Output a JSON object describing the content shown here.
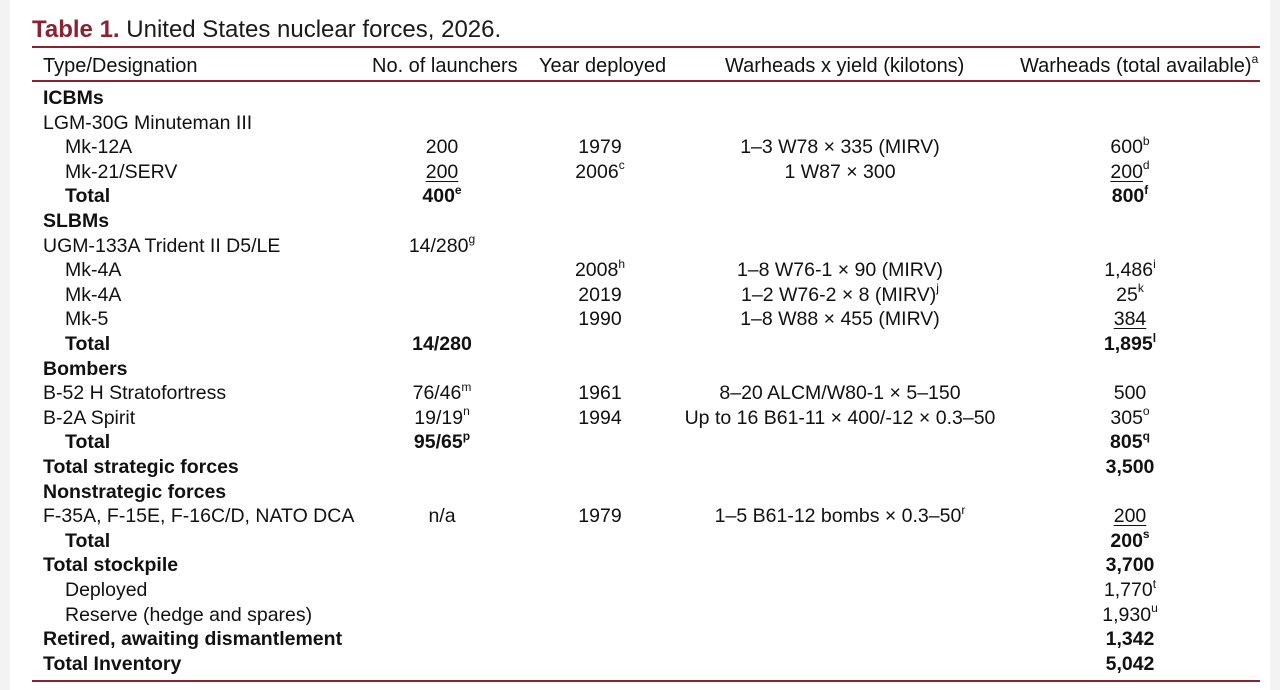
{
  "table": {
    "label": "Table 1.",
    "caption": "United States nuclear forces, 2026.",
    "headers": {
      "type": "Type/Designation",
      "launchers": "No. of launchers",
      "year": "Year deployed",
      "warheads_yield": "Warheads x yield (kilotons)",
      "warheads_total": "Warheads (total available)",
      "warheads_total_note": "a"
    },
    "rows": [
      {
        "type": "ICBMs",
        "bold": true
      },
      {
        "type": "LGM-30G Minuteman III"
      },
      {
        "type": "Mk-12A",
        "indent": true,
        "launchers": "200",
        "year": "1979",
        "warheads_yield": "1–3 W78 × 335 (MIRV)",
        "total": "600",
        "total_note": "b"
      },
      {
        "type": "Mk-21/SERV",
        "indent": true,
        "launchers": "200",
        "launchers_underline": true,
        "year": "2006",
        "year_note": "c",
        "warheads_yield": "1 W87 × 300",
        "total": "200",
        "total_note": "d",
        "total_underline": true
      },
      {
        "type": "Total",
        "indent": true,
        "bold": true,
        "launchers": "400",
        "launchers_note": "e",
        "total": "800",
        "total_note": "f"
      },
      {
        "type": "SLBMs",
        "bold": true
      },
      {
        "type": "UGM-133A Trident II D5/LE",
        "launchers": "14/280",
        "launchers_note": "g"
      },
      {
        "type": "Mk-4A",
        "indent": true,
        "year": "2008",
        "year_note": "h",
        "warheads_yield": "1–8 W76-1 × 90 (MIRV)",
        "total": "1,486",
        "total_note": "i"
      },
      {
        "type": "Mk-4A",
        "indent": true,
        "year": "2019",
        "warheads_yield": "1–2 W76-2 × 8 (MIRV)",
        "warheads_yield_note": "j",
        "total": "25",
        "total_note": "k"
      },
      {
        "type": "Mk-5",
        "indent": true,
        "year": "1990",
        "warheads_yield": "1–8 W88 × 455 (MIRV)",
        "total": "384",
        "total_underline": true
      },
      {
        "type": "Total",
        "indent": true,
        "bold": true,
        "launchers": "14/280",
        "total": "1,895",
        "total_note": "l"
      },
      {
        "type": "Bombers",
        "bold": true
      },
      {
        "type": "B-52 H Stratofortress",
        "launchers": "76/46",
        "launchers_note": "m",
        "year": "1961",
        "warheads_yield": "8–20 ALCM/W80-1 × 5–150",
        "total": "500"
      },
      {
        "type": "B-2A Spirit",
        "launchers": "19/19",
        "launchers_note": "n",
        "year": "1994",
        "warheads_yield": "Up to 16 B61-11 × 400/-12 × 0.3–50",
        "total": "305",
        "total_note": "o"
      },
      {
        "type": "Total",
        "indent": true,
        "bold": true,
        "launchers": "95/65",
        "launchers_note": "p",
        "total": "805",
        "total_note": "q"
      },
      {
        "type": "Total strategic forces",
        "bold": true,
        "total": "3,500"
      },
      {
        "type": "Nonstrategic forces",
        "bold": true
      },
      {
        "type": "F-35A, F-15E, F-16C/D, NATO DCA",
        "launchers": "n/a",
        "year": "1979",
        "warheads_yield": "1–5 B61-12 bombs × 0.3–50",
        "warheads_yield_note": "r",
        "total": "200",
        "total_underline": true
      },
      {
        "type": "Total",
        "indent": true,
        "bold": true,
        "total": "200",
        "total_note": "s"
      },
      {
        "type": "Total stockpile",
        "bold": true,
        "total": "3,700"
      },
      {
        "type": "Deployed",
        "indent": true,
        "total": "1,770",
        "total_note": "t"
      },
      {
        "type": "Reserve (hedge and spares)",
        "indent": true,
        "total": "1,930",
        "total_note": "u"
      },
      {
        "type": "Retired, awaiting dismantlement",
        "bold": true,
        "total": "1,342"
      },
      {
        "type": "Total Inventory",
        "bold": true,
        "total": "5,042"
      }
    ]
  },
  "colors": {
    "accent": "#8b2232"
  }
}
